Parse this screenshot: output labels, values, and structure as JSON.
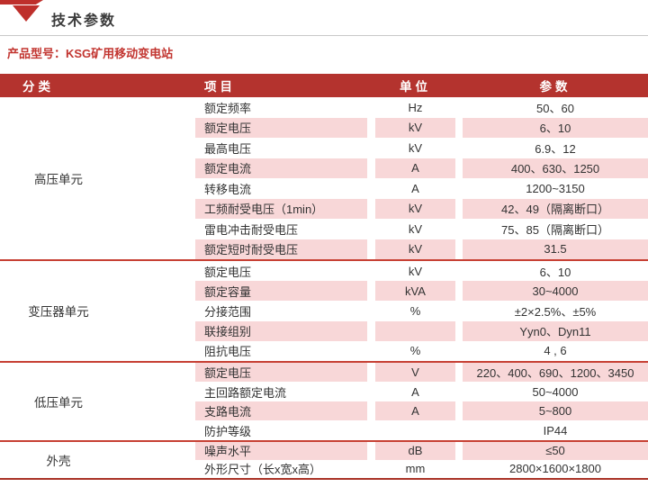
{
  "page": {
    "title": "技术参数",
    "product_model": "产品型号：KSG矿用移动变电站"
  },
  "colors": {
    "header_bg": "#b4332e",
    "stripe_pink": "#f8d7d8",
    "divider_red": "#c74034",
    "accent_red": "#c23530"
  },
  "table": {
    "headers": {
      "category": "分类",
      "item": "项目",
      "unit": "单位",
      "param": "参数"
    },
    "sections": [
      {
        "category": "高压单元",
        "rows": [
          {
            "item": "额定频率",
            "unit": "Hz",
            "param": "50、60"
          },
          {
            "item": "额定电压",
            "unit": "kV",
            "param": "6、10"
          },
          {
            "item": "最高电压",
            "unit": "kV",
            "param": "6.9、12"
          },
          {
            "item": "额定电流",
            "unit": "A",
            "param": "400、630、1250"
          },
          {
            "item": "转移电流",
            "unit": "A",
            "param": "1200~3150"
          },
          {
            "item": "工频耐受电压（1min）",
            "unit": "kV",
            "param": "42、49（隔离断口）"
          },
          {
            "item": "雷电冲击耐受电压",
            "unit": "kV",
            "param": "75、85（隔离断口）"
          },
          {
            "item": "额定短时耐受电压",
            "unit": "kV",
            "param": "31.5"
          }
        ]
      },
      {
        "category": "变压器单元",
        "rows": [
          {
            "item": "额定电压",
            "unit": "kV",
            "param": "6、10"
          },
          {
            "item": "额定容量",
            "unit": "kVA",
            "param": "30~4000"
          },
          {
            "item": "分接范围",
            "unit": "%",
            "param": "±2×2.5%、±5%"
          },
          {
            "item": "联接组别",
            "unit": "",
            "param": "Yyn0、Dyn11"
          },
          {
            "item": "阻抗电压",
            "unit": "%",
            "param": "4 , 6"
          }
        ]
      },
      {
        "category": "低压单元",
        "rows": [
          {
            "item": "额定电压",
            "unit": "V",
            "param": "220、400、690、1200、3450"
          },
          {
            "item": "主回路额定电流",
            "unit": "A",
            "param": "50~4000"
          },
          {
            "item": "支路电流",
            "unit": "A",
            "param": "5~800"
          },
          {
            "item": "防护等级",
            "unit": "",
            "param": "IP44"
          }
        ]
      },
      {
        "category": "外壳",
        "rows": [
          {
            "item": "噪声水平",
            "unit": "dB",
            "param": "≤50"
          },
          {
            "item": "外形尺寸（长x宽x高）",
            "unit": "mm",
            "param": "2800×1600×1800"
          }
        ]
      }
    ]
  }
}
